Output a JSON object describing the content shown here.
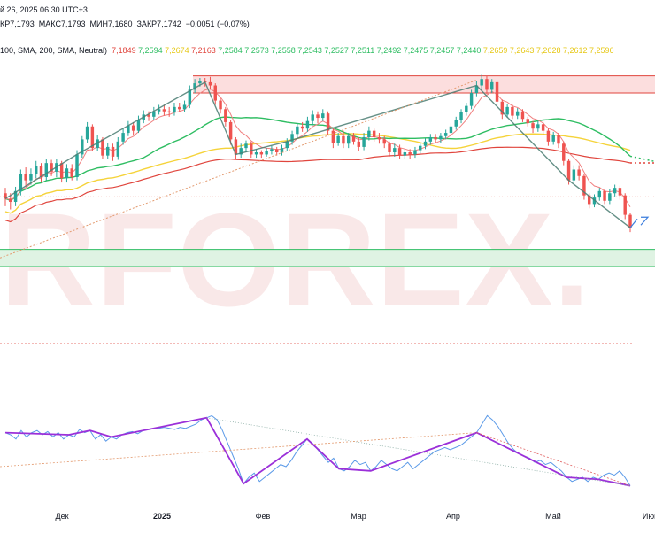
{
  "header": {
    "line1_parts": [
      "й 26, 2025 06:30 UTC+3"
    ],
    "line2_parts": [
      "КР7,1793",
      "МАКС7,1793",
      "МИН7,1680",
      "ЗАКР7,1742",
      "−0,0051 (−0,07%)"
    ],
    "ma_label": "100, SMA, 200, SMA, Neutral)",
    "ma_values": [
      {
        "text": "7,1849",
        "color": "#e0453d"
      },
      {
        "text": "7,2594",
        "color": "#2ebd62"
      },
      {
        "text": "7,2674",
        "color": "#e6c817"
      },
      {
        "text": "7,2163",
        "color": "#e0453d"
      },
      {
        "text": "7,2584",
        "color": "#2ebd62"
      },
      {
        "text": "7,2573",
        "color": "#2ebd62"
      },
      {
        "text": "7,2558",
        "color": "#2ebd62"
      },
      {
        "text": "7,2543",
        "color": "#2ebd62"
      },
      {
        "text": "7,2527",
        "color": "#2ebd62"
      },
      {
        "text": "7,2511",
        "color": "#2ebd62"
      },
      {
        "text": "7,2492",
        "color": "#2ebd62"
      },
      {
        "text": "7,2475",
        "color": "#2ebd62"
      },
      {
        "text": "7,2457",
        "color": "#2ebd62"
      },
      {
        "text": "7,2440",
        "color": "#2ebd62"
      },
      {
        "text": "7,2659",
        "color": "#e6c817"
      },
      {
        "text": "7,2643",
        "color": "#e6c817"
      },
      {
        "text": "7,2628",
        "color": "#e6c817"
      },
      {
        "text": "7,2612",
        "color": "#e6c817"
      },
      {
        "text": "7,2596",
        "color": "#e6c817"
      }
    ]
  },
  "watermark": "RFOREX.",
  "colors": {
    "up": "#26a69a",
    "down": "#ef5350",
    "ema_red": "#f08080",
    "sma_green": "#2ebd62",
    "sma_yellow": "#f5d33a",
    "sma_red": "#e0453d",
    "zigzag": "#4a7c72",
    "osc_blue": "#5b9ae8",
    "osc_purple": "#9b30d9",
    "resist_zone": "#fcdede",
    "support_zone": "#dff3e3"
  },
  "chart_data": {
    "type": "candlestick",
    "x_ticks": [
      "Дек",
      "2025",
      "Фев",
      "Мар",
      "Апр",
      "Май",
      "Июн"
    ],
    "price_range": [
      7.14,
      7.37
    ],
    "resistance_zone": [
      7.333,
      7.349
    ],
    "support_zone": [
      7.172,
      7.188
    ],
    "candles": [
      [
        7.24,
        7.235,
        7.245,
        7.228
      ],
      [
        7.235,
        7.232,
        7.24,
        7.225
      ],
      [
        7.232,
        7.242,
        7.246,
        7.228
      ],
      [
        7.242,
        7.258,
        7.262,
        7.238
      ],
      [
        7.258,
        7.252,
        7.264,
        7.246
      ],
      [
        7.252,
        7.258,
        7.263,
        7.248
      ],
      [
        7.258,
        7.265,
        7.27,
        7.254
      ],
      [
        7.265,
        7.255,
        7.268,
        7.25
      ],
      [
        7.255,
        7.268,
        7.272,
        7.252
      ],
      [
        7.268,
        7.26,
        7.271,
        7.256
      ],
      [
        7.26,
        7.268,
        7.272,
        7.255
      ],
      [
        7.268,
        7.254,
        7.27,
        7.25
      ],
      [
        7.254,
        7.263,
        7.267,
        7.25
      ],
      [
        7.263,
        7.255,
        7.267,
        7.252
      ],
      [
        7.255,
        7.276,
        7.28,
        7.252
      ],
      [
        7.276,
        7.29,
        7.293,
        7.273
      ],
      [
        7.29,
        7.302,
        7.306,
        7.287
      ],
      [
        7.302,
        7.282,
        7.304,
        7.279
      ],
      [
        7.282,
        7.29,
        7.294,
        7.279
      ],
      [
        7.29,
        7.275,
        7.292,
        7.272
      ],
      [
        7.275,
        7.283,
        7.287,
        7.272
      ],
      [
        7.283,
        7.274,
        7.286,
        7.27
      ],
      [
        7.274,
        7.288,
        7.292,
        7.271
      ],
      [
        7.288,
        7.296,
        7.3,
        7.285
      ],
      [
        7.296,
        7.303,
        7.307,
        7.293
      ],
      [
        7.303,
        7.298,
        7.306,
        7.294
      ],
      [
        7.298,
        7.308,
        7.312,
        7.296
      ],
      [
        7.308,
        7.313,
        7.317,
        7.305
      ],
      [
        7.313,
        7.311,
        7.316,
        7.307
      ],
      [
        7.311,
        7.316,
        7.32,
        7.308
      ],
      [
        7.316,
        7.318,
        7.322,
        7.313
      ],
      [
        7.318,
        7.316,
        7.322,
        7.312
      ],
      [
        7.316,
        7.315,
        7.32,
        7.311
      ],
      [
        7.315,
        7.32,
        7.324,
        7.312
      ],
      [
        7.32,
        7.318,
        7.324,
        7.315
      ],
      [
        7.318,
        7.322,
        7.326,
        7.315
      ],
      [
        7.322,
        7.336,
        7.34,
        7.319
      ],
      [
        7.336,
        7.342,
        7.346,
        7.333
      ],
      [
        7.342,
        7.344,
        7.347,
        7.339
      ],
      [
        7.344,
        7.343,
        7.347,
        7.339
      ],
      [
        7.343,
        7.34,
        7.348,
        7.336
      ],
      [
        7.34,
        7.326,
        7.342,
        7.322
      ],
      [
        7.326,
        7.318,
        7.328,
        7.314
      ],
      [
        7.318,
        7.306,
        7.32,
        7.302
      ],
      [
        7.306,
        7.29,
        7.308,
        7.285
      ],
      [
        7.29,
        7.276,
        7.292,
        7.271
      ],
      [
        7.276,
        7.282,
        7.286,
        7.273
      ],
      [
        7.282,
        7.286,
        7.289,
        7.278
      ],
      [
        7.286,
        7.276,
        7.288,
        7.273
      ],
      [
        7.276,
        7.278,
        7.281,
        7.273
      ],
      [
        7.278,
        7.276,
        7.28,
        7.273
      ],
      [
        7.276,
        7.279,
        7.282,
        7.274
      ],
      [
        7.279,
        7.281,
        7.284,
        7.276
      ],
      [
        7.281,
        7.278,
        7.283,
        7.275
      ],
      [
        7.278,
        7.282,
        7.285,
        7.275
      ],
      [
        7.282,
        7.288,
        7.291,
        7.279
      ],
      [
        7.288,
        7.295,
        7.298,
        7.285
      ],
      [
        7.295,
        7.302,
        7.305,
        7.291
      ],
      [
        7.302,
        7.3,
        7.306,
        7.297
      ],
      [
        7.3,
        7.307,
        7.311,
        7.297
      ],
      [
        7.307,
        7.313,
        7.317,
        7.303
      ],
      [
        7.313,
        7.31,
        7.316,
        7.305
      ],
      [
        7.31,
        7.314,
        7.318,
        7.307
      ],
      [
        7.314,
        7.298,
        7.316,
        7.294
      ],
      [
        7.298,
        7.287,
        7.3,
        7.282
      ],
      [
        7.287,
        7.293,
        7.296,
        7.284
      ],
      [
        7.293,
        7.286,
        7.298,
        7.282
      ],
      [
        7.286,
        7.293,
        7.296,
        7.282
      ],
      [
        7.293,
        7.288,
        7.296,
        7.285
      ],
      [
        7.288,
        7.283,
        7.292,
        7.279
      ],
      [
        7.283,
        7.292,
        7.296,
        7.28
      ],
      [
        7.292,
        7.298,
        7.302,
        7.289
      ],
      [
        7.298,
        7.292,
        7.3,
        7.288
      ],
      [
        7.292,
        7.29,
        7.296,
        7.286
      ],
      [
        7.29,
        7.286,
        7.293,
        7.282
      ],
      [
        7.286,
        7.278,
        7.288,
        7.274
      ],
      [
        7.278,
        7.282,
        7.286,
        7.274
      ],
      [
        7.282,
        7.275,
        7.285,
        7.272
      ],
      [
        7.275,
        7.278,
        7.281,
        7.272
      ],
      [
        7.278,
        7.276,
        7.281,
        7.272
      ],
      [
        7.276,
        7.28,
        7.283,
        7.273
      ],
      [
        7.28,
        7.284,
        7.287,
        7.277
      ],
      [
        7.284,
        7.288,
        7.291,
        7.281
      ],
      [
        7.288,
        7.292,
        7.295,
        7.285
      ],
      [
        7.292,
        7.29,
        7.295,
        7.287
      ],
      [
        7.29,
        7.293,
        7.296,
        7.287
      ],
      [
        7.293,
        7.296,
        7.299,
        7.29
      ],
      [
        7.296,
        7.302,
        7.305,
        7.293
      ],
      [
        7.302,
        7.308,
        7.311,
        7.299
      ],
      [
        7.308,
        7.315,
        7.318,
        7.305
      ],
      [
        7.315,
        7.321,
        7.324,
        7.312
      ],
      [
        7.321,
        7.333,
        7.336,
        7.318
      ],
      [
        7.333,
        7.34,
        7.344,
        7.33
      ],
      [
        7.34,
        7.346,
        7.35,
        7.337
      ],
      [
        7.346,
        7.336,
        7.349,
        7.332
      ],
      [
        7.336,
        7.343,
        7.346,
        7.333
      ],
      [
        7.343,
        7.325,
        7.345,
        7.321
      ],
      [
        7.325,
        7.313,
        7.327,
        7.309
      ],
      [
        7.313,
        7.32,
        7.323,
        7.31
      ],
      [
        7.32,
        7.312,
        7.322,
        7.309
      ],
      [
        7.312,
        7.316,
        7.319,
        7.309
      ],
      [
        7.316,
        7.309,
        7.318,
        7.306
      ],
      [
        7.309,
        7.305,
        7.311,
        7.302
      ],
      [
        7.305,
        7.3,
        7.307,
        7.296
      ],
      [
        7.3,
        7.304,
        7.307,
        7.297
      ],
      [
        7.304,
        7.298,
        7.306,
        7.294
      ],
      [
        7.298,
        7.288,
        7.3,
        7.284
      ],
      [
        7.288,
        7.294,
        7.297,
        7.285
      ],
      [
        7.294,
        7.286,
        7.296,
        7.282
      ],
      [
        7.286,
        7.27,
        7.288,
        7.266
      ],
      [
        7.27,
        7.252,
        7.272,
        7.248
      ],
      [
        7.252,
        7.262,
        7.266,
        7.249
      ],
      [
        7.262,
        7.256,
        7.266,
        7.252
      ],
      [
        7.256,
        7.238,
        7.258,
        7.234
      ],
      [
        7.238,
        7.23,
        7.24,
        7.226
      ],
      [
        7.23,
        7.236,
        7.239,
        7.227
      ],
      [
        7.236,
        7.242,
        7.245,
        7.233
      ],
      [
        7.242,
        7.233,
        7.244,
        7.23
      ],
      [
        7.233,
        7.24,
        7.244,
        7.23
      ],
      [
        7.24,
        7.245,
        7.248,
        7.237
      ],
      [
        7.245,
        7.238,
        7.247,
        7.234
      ],
      [
        7.238,
        7.22,
        7.24,
        7.216
      ],
      [
        7.22,
        7.208,
        7.222,
        7.204
      ]
    ],
    "oscillator": [
      0.72,
      0.7,
      0.66,
      0.74,
      0.68,
      0.72,
      0.74,
      0.7,
      0.73,
      0.68,
      0.72,
      0.66,
      0.7,
      0.68,
      0.75,
      0.72,
      0.74,
      0.66,
      0.7,
      0.64,
      0.68,
      0.66,
      0.7,
      0.72,
      0.73,
      0.71,
      0.74,
      0.75,
      0.76,
      0.76,
      0.77,
      0.76,
      0.75,
      0.77,
      0.76,
      0.78,
      0.8,
      0.84,
      0.86,
      0.88,
      0.84,
      0.74,
      0.62,
      0.5,
      0.38,
      0.24,
      0.3,
      0.34,
      0.26,
      0.3,
      0.34,
      0.38,
      0.42,
      0.4,
      0.46,
      0.54,
      0.6,
      0.66,
      0.62,
      0.56,
      0.5,
      0.44,
      0.48,
      0.38,
      0.36,
      0.4,
      0.46,
      0.42,
      0.44,
      0.36,
      0.4,
      0.46,
      0.42,
      0.38,
      0.36,
      0.4,
      0.44,
      0.38,
      0.42,
      0.46,
      0.5,
      0.54,
      0.56,
      0.58,
      0.56,
      0.58,
      0.6,
      0.64,
      0.68,
      0.72,
      0.8,
      0.88,
      0.84,
      0.78,
      0.7,
      0.62,
      0.56,
      0.52,
      0.5,
      0.48,
      0.44,
      0.46,
      0.42,
      0.44,
      0.4,
      0.36,
      0.3,
      0.26,
      0.28,
      0.3,
      0.26,
      0.3,
      0.28,
      0.32,
      0.34,
      0.32,
      0.36,
      0.3,
      0.22
    ]
  }
}
